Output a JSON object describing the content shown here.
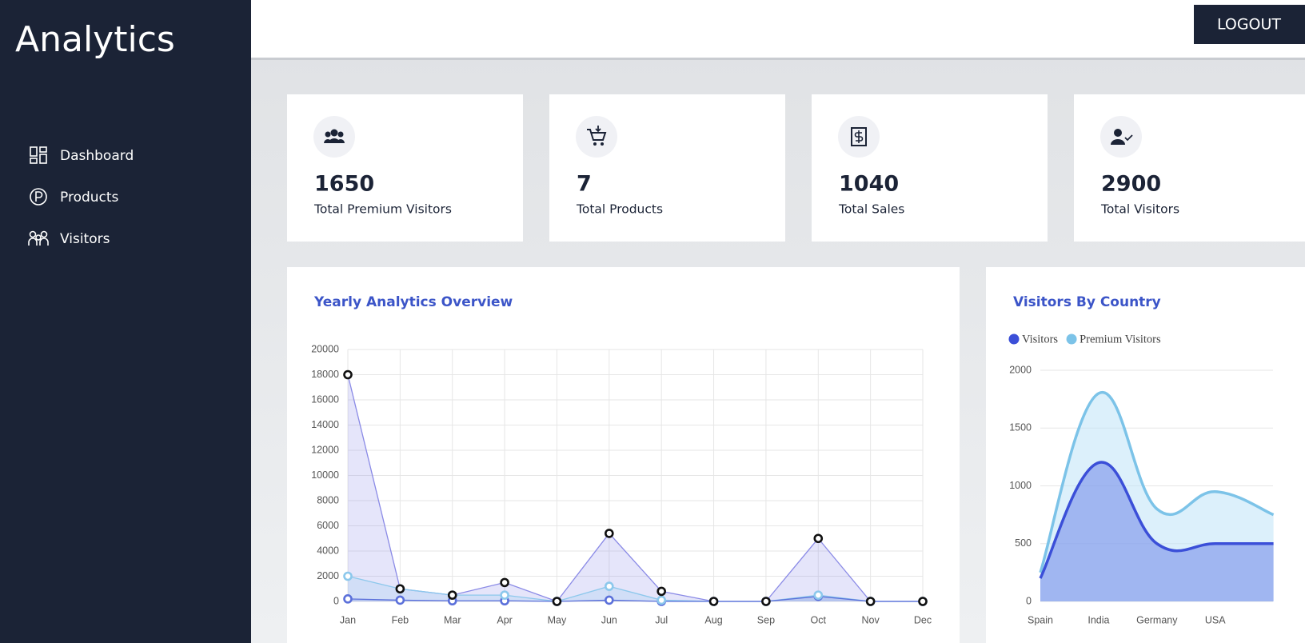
{
  "sidebar": {
    "title": "Analytics",
    "nav": [
      "Dashboard",
      "Products",
      "Visitors"
    ]
  },
  "header": {
    "button": "LOGOUT"
  },
  "cards": [
    {
      "value": 1650,
      "label": "Total Premium Visitors"
    },
    {
      "value": 7,
      "label": "Total Products"
    },
    {
      "value": 1040,
      "label": "Total Sales"
    },
    {
      "value": 2900,
      "label": "Total Visitors"
    }
  ],
  "chart_data": [
    {
      "type": "area",
      "title": "Yearly Analytics Overview",
      "smooth": false,
      "grid": true,
      "categories": [
        "Jan",
        "Feb",
        "Mar",
        "Apr",
        "May",
        "Jun",
        "Jul",
        "Aug",
        "Sep",
        "Oct",
        "Nov",
        "Dec"
      ],
      "ylim": [
        0,
        20000
      ],
      "yticks": [
        0,
        2000,
        4000,
        6000,
        8000,
        10000,
        12000,
        14000,
        16000,
        18000,
        20000
      ],
      "series": [
        {
          "color": "#111111",
          "fill": "#8a8ae6",
          "values": [
            18000,
            1000,
            500,
            1500,
            0,
            5400,
            800,
            0,
            0,
            5000,
            0,
            0
          ]
        },
        {
          "color": "#8cc8ec",
          "fill": "#8cc8ec",
          "values": [
            2000,
            1000,
            500,
            500,
            0,
            1200,
            100,
            0,
            0,
            500,
            0,
            0
          ]
        },
        {
          "color": "#5b70da",
          "fill": "#5b70da",
          "values": [
            200,
            100,
            50,
            50,
            0,
            100,
            0,
            0,
            0,
            400,
            0,
            0
          ]
        }
      ]
    },
    {
      "type": "area",
      "title": "Visitors By Country",
      "smooth": true,
      "grid": true,
      "legend": "top-left",
      "categories": [
        "Spain",
        "India",
        "Germany",
        "USA",
        null
      ],
      "ylim": [
        0,
        2000
      ],
      "yticks": [
        0,
        500,
        1000,
        1500,
        2000
      ],
      "series": [
        {
          "name": "Visitors",
          "color": "#3b4fd8",
          "fill": "#6f86ea",
          "values": [
            200,
            1200,
            500,
            500,
            500
          ]
        },
        {
          "name": "Premium Visitors",
          "color": "#7cc3e8",
          "fill": "#bfe3f7",
          "values": [
            250,
            1800,
            800,
            950,
            750
          ]
        }
      ]
    }
  ]
}
